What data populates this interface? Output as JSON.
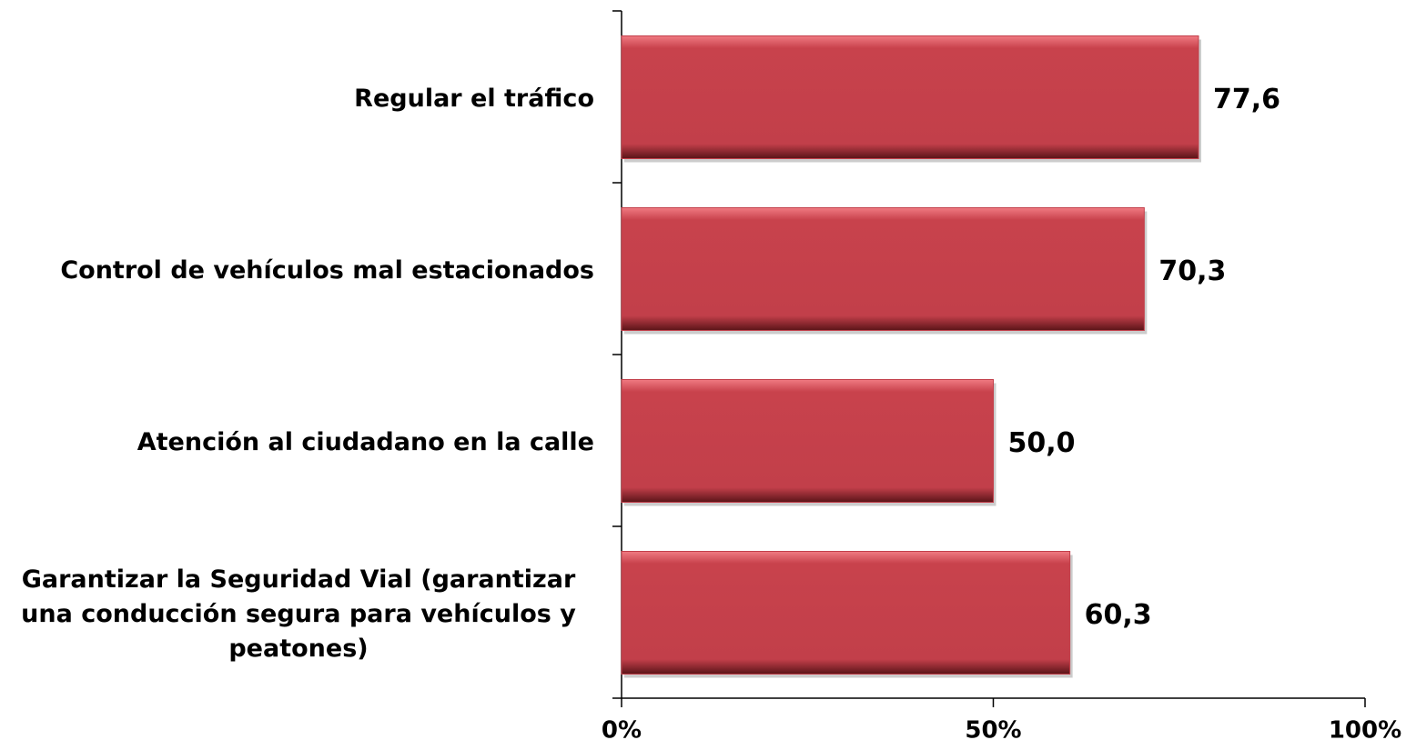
{
  "chart_data": {
    "type": "bar",
    "orientation": "horizontal",
    "categories": [
      "Regular el tráfico",
      "Control de vehículos mal estacionados",
      "Atención al ciudadano en la calle",
      "Garantizar la Seguridad Vial (garantizar una conducción segura para vehículos y peatones)"
    ],
    "values": [
      77.6,
      70.3,
      50.0,
      60.3
    ],
    "value_labels": [
      "77,6",
      "70,3",
      "50,0",
      "60,3"
    ],
    "color": "#c23f4a",
    "xlim": [
      0,
      100
    ],
    "xticks": [
      {
        "value": 0,
        "label": "0%"
      },
      {
        "value": 50,
        "label": "50%"
      },
      {
        "value": 100,
        "label": "100%"
      }
    ],
    "grid": false
  }
}
